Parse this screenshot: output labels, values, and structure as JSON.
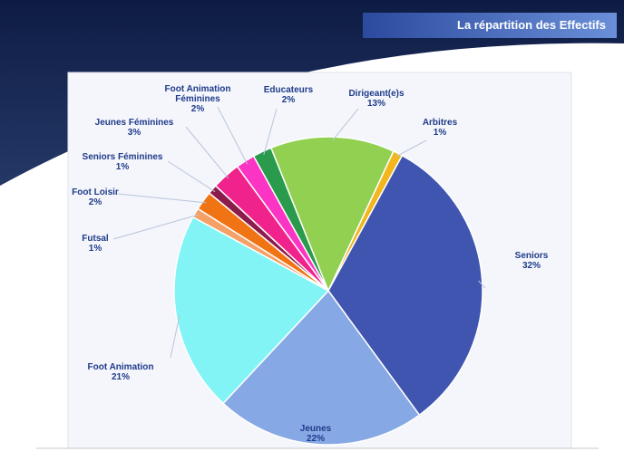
{
  "chart_data": {
    "type": "pie",
    "title": "La répartition des Effectifs",
    "categories": [
      "Arbitres",
      "Seniors",
      "Jeunes",
      "Foot Animation",
      "Futsal",
      "Foot Loisir",
      "Seniors Féminines",
      "Jeunes Féminines",
      "Foot Animation Féminines",
      "Educateurs",
      "Dirigeant(e)s"
    ],
    "values": [
      1,
      32,
      22,
      21,
      1,
      2,
      1,
      3,
      2,
      2,
      13
    ],
    "value_labels": [
      "1%",
      "32%",
      "22%",
      "21%",
      "1%",
      "2%",
      "1%",
      "3%",
      "2%",
      "2%",
      "13%"
    ],
    "colors": [
      "#f2b61e",
      "#3f55b0",
      "#86a8e4",
      "#82f4f6",
      "#f4a066",
      "#f07414",
      "#8c1c4c",
      "#f0228c",
      "#fc34c4",
      "#2a9a4c",
      "#92d052"
    ]
  }
}
